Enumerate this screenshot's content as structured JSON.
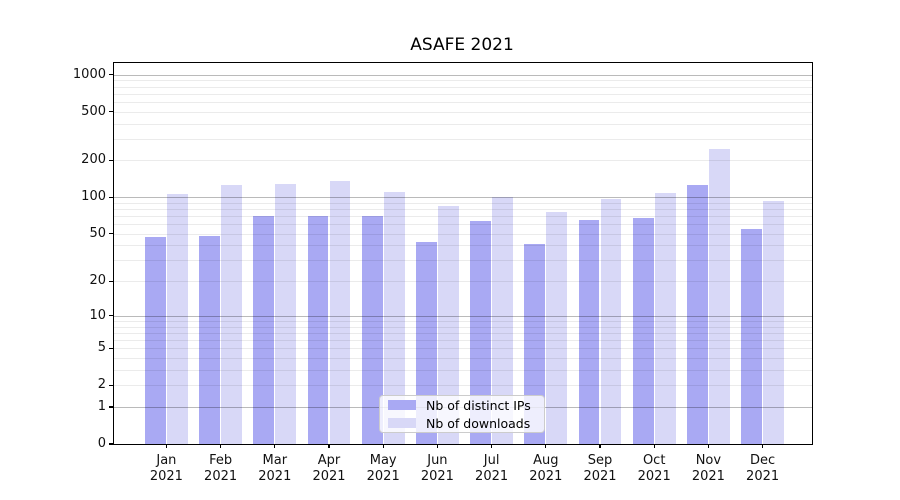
{
  "title": "ASAFE 2021",
  "chart_data": {
    "type": "bar",
    "title": "ASAFE 2021",
    "categories": [
      "Jan 2021",
      "Feb 2021",
      "Mar 2021",
      "Apr 2021",
      "May 2021",
      "Jun 2021",
      "Jul 2021",
      "Aug 2021",
      "Sep 2021",
      "Oct 2021",
      "Nov 2021",
      "Dec 2021"
    ],
    "series": [
      {
        "name": "Nb of distinct IPs",
        "color": "#a9a9f3",
        "values": [
          47,
          48,
          70,
          70,
          70,
          43,
          64,
          41,
          65,
          67,
          127,
          55
        ]
      },
      {
        "name": "Nb of downloads",
        "color": "#d8d8f7",
        "values": [
          106,
          126,
          129,
          135,
          110,
          85,
          101,
          76,
          96,
          108,
          248,
          94
        ]
      }
    ],
    "xlabel": "",
    "ylabel": "",
    "yscale": "log1p",
    "yticks": [
      0,
      1,
      2,
      5,
      10,
      20,
      50,
      100,
      200,
      500,
      1000
    ],
    "ylim": [
      0,
      1244
    ],
    "grid": "both",
    "legend_position": "lower center",
    "grid_major_color": "#bdbdbd",
    "grid_minor_color": "#ececec"
  }
}
